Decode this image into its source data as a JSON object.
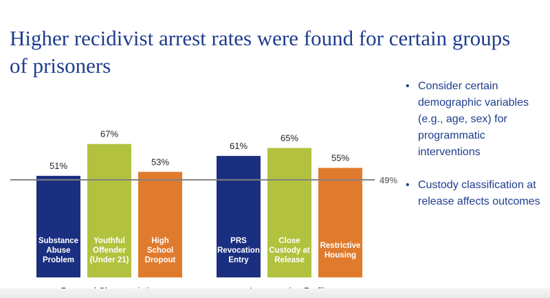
{
  "slide": {
    "title": "Higher recidivist arrest rates were found for certain groups of prisoners"
  },
  "bullets": [
    "Consider certain demographic variables (e.g., age, sex) for programmatic interventions",
    "Custody classification at release affects outcomes"
  ],
  "chart_data": {
    "type": "bar",
    "groups": [
      {
        "label": "Personal Characteristics",
        "bars": [
          {
            "label": [
              "Substance",
              "Abuse",
              "Problem"
            ],
            "value": 51,
            "value_label": "51%",
            "color": "#1b2f80"
          },
          {
            "label": [
              "Youthful",
              "Offender",
              "(Under 21)"
            ],
            "value": 67,
            "value_label": "67%",
            "color": "#b2c23f"
          },
          {
            "label": [
              "High",
              "School",
              "Dropout"
            ],
            "value": 53,
            "value_label": "53%",
            "color": "#e07b2e"
          }
        ]
      },
      {
        "label": "Incarceration Profile",
        "bars": [
          {
            "label": [
              "PRS",
              "Revocation",
              "Entry"
            ],
            "value": 61,
            "value_label": "61%",
            "color": "#1b2f80"
          },
          {
            "label": [
              "Close",
              "Custody at",
              "Release"
            ],
            "value": 65,
            "value_label": "65%",
            "color": "#b2c23f"
          },
          {
            "label": [
              "Restrictive",
              "Housing"
            ],
            "value": 55,
            "value_label": "55%",
            "color": "#e07b2e"
          }
        ]
      }
    ],
    "reference_line": {
      "value": 49,
      "label": "49%",
      "color": "#808080"
    },
    "ylim": [
      0,
      100
    ]
  }
}
